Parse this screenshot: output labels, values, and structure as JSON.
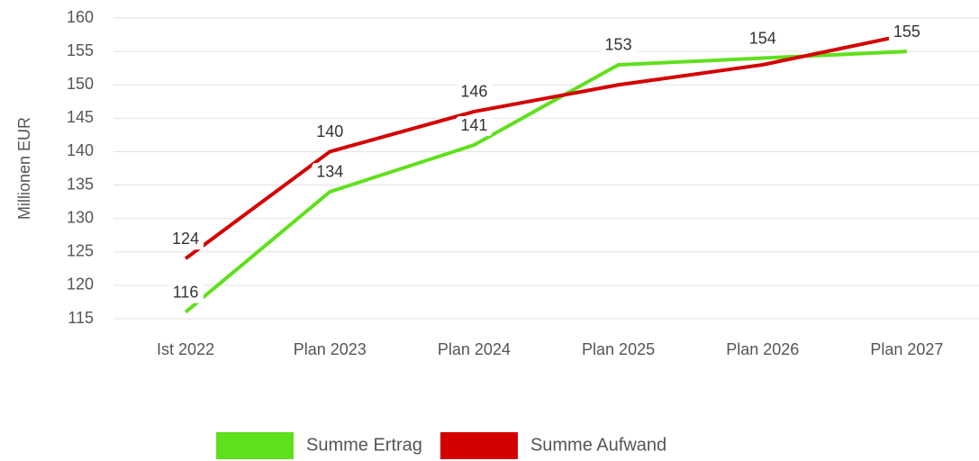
{
  "chart_data": {
    "type": "line",
    "y_label": "Millionen EUR",
    "categories": [
      "Ist 2022",
      "Plan 2023",
      "Plan 2024",
      "Plan 2025",
      "Plan 2026",
      "Plan 2027"
    ],
    "series": [
      {
        "name": "Summe Ertrag",
        "color": "#5fe01c",
        "values": [
          116,
          134,
          141,
          153,
          154,
          155
        ],
        "value_labels": [
          "116",
          "134",
          "141",
          "153",
          "154",
          "155"
        ]
      },
      {
        "name": "Summe Aufwand",
        "color": "#d40000",
        "values": [
          124,
          140,
          146,
          150,
          153,
          157.5
        ],
        "value_labels": [
          "124",
          "140",
          "146",
          null,
          null,
          null
        ]
      }
    ],
    "ylim": [
      115,
      160
    ],
    "yticks": [
      115,
      120,
      125,
      130,
      135,
      140,
      145,
      150,
      155,
      160
    ],
    "grid": true
  }
}
